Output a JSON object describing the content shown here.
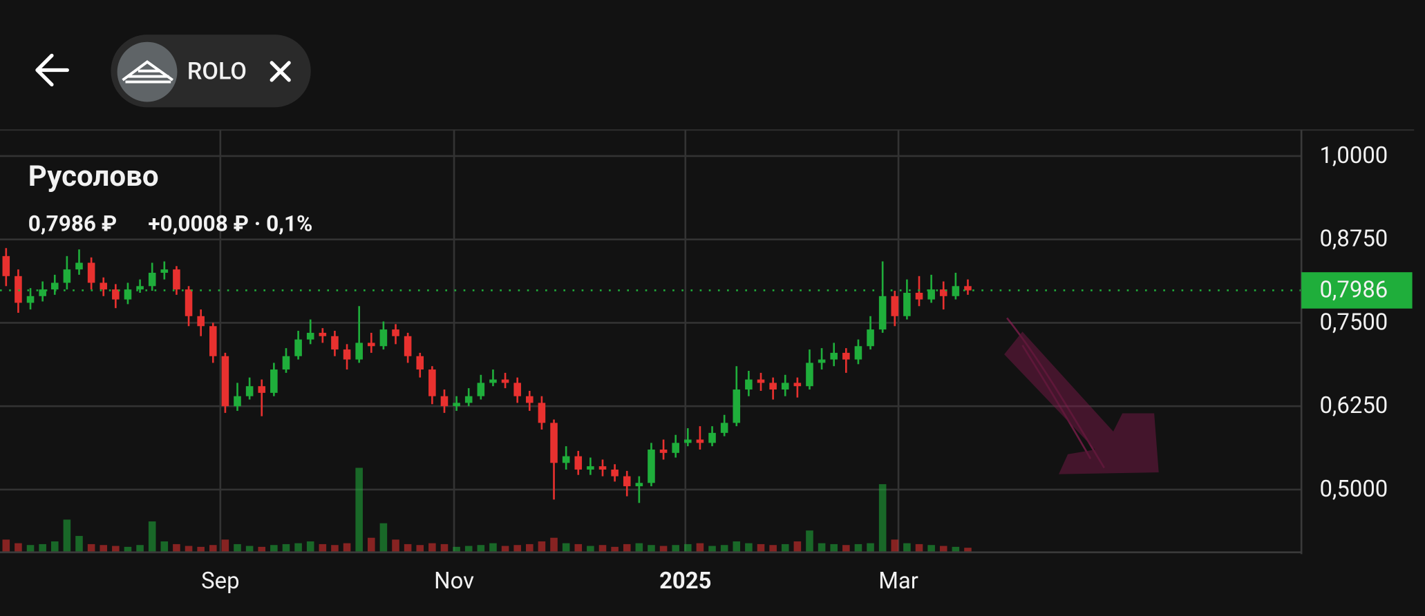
{
  "header": {
    "ticker": "ROLO"
  },
  "chart_data": {
    "type": "candlestick",
    "title": "Русолово",
    "price_label": "0,7986 ₽",
    "change_label": "+0,0008 ₽ · 0,1%",
    "current_price": {
      "value": 0.7986,
      "label": "0,7986"
    },
    "up_color": "#1fae3b",
    "down_color": "#e8312f",
    "grid": true,
    "categories": [
      null,
      null,
      null,
      null,
      null,
      null,
      null,
      null,
      null,
      null,
      null,
      null,
      null,
      null,
      null,
      null,
      null,
      null,
      null,
      null,
      null,
      null,
      null,
      null,
      null,
      null,
      null,
      null,
      null,
      null,
      null,
      null,
      null,
      null,
      null,
      null,
      null,
      null,
      null,
      null,
      null,
      null,
      null,
      null,
      null,
      null,
      null,
      null,
      null,
      null,
      null,
      null,
      null,
      null,
      null,
      null,
      null,
      null,
      null,
      null,
      null,
      null,
      null,
      null,
      null,
      null,
      null,
      null,
      null,
      null,
      null,
      null,
      null,
      null,
      null,
      null,
      null,
      null,
      null,
      null
    ],
    "open": [
      0.85,
      0.82,
      0.78,
      0.79,
      0.8,
      0.81,
      0.83,
      0.84,
      0.81,
      0.8,
      0.785,
      0.8,
      0.805,
      0.825,
      0.83,
      0.8,
      0.76,
      0.745,
      0.7,
      0.625,
      0.64,
      0.655,
      0.645,
      0.68,
      0.7,
      0.725,
      0.735,
      0.73,
      0.71,
      0.695,
      0.72,
      0.715,
      0.74,
      0.73,
      0.7,
      0.68,
      0.64,
      0.625,
      0.63,
      0.64,
      0.66,
      0.665,
      0.66,
      0.64,
      0.63,
      0.6,
      0.54,
      0.55,
      0.53,
      0.535,
      0.53,
      0.52,
      0.505,
      0.51,
      0.56,
      0.555,
      0.57,
      0.575,
      0.57,
      0.585,
      0.6,
      0.65,
      0.665,
      0.66,
      0.65,
      0.66,
      0.655,
      0.69,
      0.695,
      0.705,
      0.695,
      0.715,
      0.74,
      0.79,
      0.76,
      0.795,
      0.785,
      0.8,
      0.79,
      0.805
    ],
    "high": [
      0.862,
      0.83,
      0.802,
      0.812,
      0.822,
      0.85,
      0.86,
      0.848,
      0.818,
      0.808,
      0.81,
      0.815,
      0.84,
      0.842,
      0.835,
      0.805,
      0.77,
      0.75,
      0.705,
      0.66,
      0.668,
      0.665,
      0.69,
      0.712,
      0.738,
      0.755,
      0.742,
      0.738,
      0.718,
      0.775,
      0.735,
      0.752,
      0.748,
      0.735,
      0.705,
      0.685,
      0.65,
      0.64,
      0.652,
      0.672,
      0.68,
      0.675,
      0.668,
      0.648,
      0.64,
      0.605,
      0.565,
      0.558,
      0.548,
      0.545,
      0.538,
      0.528,
      0.52,
      0.57,
      0.575,
      0.582,
      0.592,
      0.595,
      0.595,
      0.612,
      0.685,
      0.678,
      0.675,
      0.668,
      0.672,
      0.668,
      0.71,
      0.712,
      0.72,
      0.712,
      0.725,
      0.76,
      0.842,
      0.798,
      0.815,
      0.82,
      0.822,
      0.812,
      0.825,
      0.815
    ],
    "low": [
      0.805,
      0.765,
      0.77,
      0.782,
      0.792,
      0.8,
      0.822,
      0.8,
      0.79,
      0.772,
      0.778,
      0.795,
      0.798,
      0.815,
      0.792,
      0.745,
      0.73,
      0.69,
      0.615,
      0.618,
      0.635,
      0.61,
      0.64,
      0.675,
      0.695,
      0.718,
      0.72,
      0.7,
      0.68,
      0.69,
      0.705,
      0.71,
      0.718,
      0.69,
      0.668,
      0.628,
      0.615,
      0.618,
      0.625,
      0.635,
      0.655,
      0.652,
      0.63,
      0.618,
      0.59,
      0.485,
      0.53,
      0.522,
      0.522,
      0.52,
      0.512,
      0.49,
      0.48,
      0.505,
      0.545,
      0.548,
      0.565,
      0.56,
      0.565,
      0.58,
      0.595,
      0.64,
      0.648,
      0.635,
      0.64,
      0.638,
      0.65,
      0.68,
      0.685,
      0.675,
      0.688,
      0.71,
      0.735,
      0.745,
      0.755,
      0.775,
      0.78,
      0.77,
      0.785,
      0.792
    ],
    "close": [
      0.82,
      0.78,
      0.79,
      0.8,
      0.81,
      0.83,
      0.84,
      0.81,
      0.8,
      0.785,
      0.8,
      0.805,
      0.825,
      0.83,
      0.8,
      0.76,
      0.745,
      0.7,
      0.625,
      0.64,
      0.655,
      0.645,
      0.68,
      0.7,
      0.725,
      0.735,
      0.73,
      0.71,
      0.695,
      0.72,
      0.715,
      0.74,
      0.73,
      0.7,
      0.68,
      0.64,
      0.625,
      0.63,
      0.64,
      0.66,
      0.665,
      0.66,
      0.64,
      0.63,
      0.6,
      0.54,
      0.55,
      0.53,
      0.535,
      0.53,
      0.52,
      0.505,
      0.51,
      0.56,
      0.555,
      0.57,
      0.575,
      0.57,
      0.585,
      0.6,
      0.65,
      0.665,
      0.66,
      0.65,
      0.66,
      0.655,
      0.69,
      0.695,
      0.705,
      0.695,
      0.715,
      0.74,
      0.79,
      0.76,
      0.795,
      0.785,
      0.8,
      0.79,
      0.805,
      0.7986
    ],
    "volume": [
      14,
      10,
      8,
      9,
      12,
      36,
      18,
      9,
      8,
      7,
      6,
      8,
      34,
      12,
      9,
      7,
      6,
      8,
      14,
      9,
      7,
      6,
      8,
      9,
      10,
      12,
      9,
      8,
      10,
      93,
      16,
      32,
      14,
      9,
      8,
      10,
      9,
      6,
      7,
      8,
      10,
      7,
      8,
      9,
      12,
      16,
      10,
      9,
      7,
      8,
      6,
      9,
      10,
      8,
      7,
      8,
      9,
      10,
      7,
      8,
      12,
      10,
      9,
      8,
      9,
      12,
      24,
      10,
      9,
      8,
      9,
      10,
      75,
      14,
      10,
      9,
      8,
      7,
      6,
      5
    ],
    "xlim": [
      -0.5,
      106.4
    ],
    "xticks": [
      {
        "value": 17.6,
        "label": "Sep"
      },
      {
        "value": 36.8,
        "label": "Nov"
      },
      {
        "value": 55.8,
        "label": "2025",
        "bold": true
      },
      {
        "value": 73.3,
        "label": "Mar"
      }
    ],
    "ylim": [
      0.406,
      1.039
    ],
    "yticks": [
      {
        "value": 0.5,
        "label": "0,5000"
      },
      {
        "value": 0.625,
        "label": "0,6250"
      },
      {
        "value": 0.75,
        "label": "0,7500"
      },
      {
        "value": 0.875,
        "label": "0,8750"
      },
      {
        "value": 1.0,
        "label": "1,0000"
      }
    ]
  }
}
